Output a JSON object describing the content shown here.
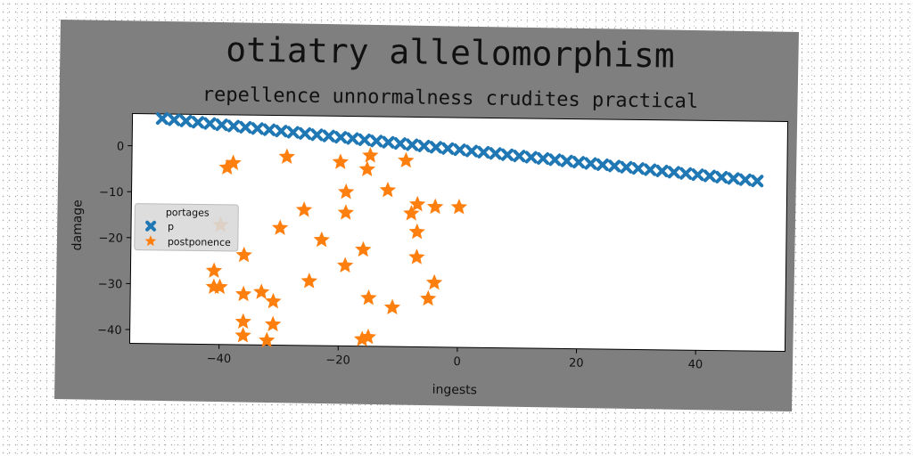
{
  "chart_data": {
    "type": "scatter",
    "title": "otiatry allelomorphism",
    "subtitle": "repellence unnormalness crudites practical",
    "xlabel": "ingests",
    "ylabel": "damage",
    "xlim": [
      -55,
      55
    ],
    "ylim": [
      -43,
      7
    ],
    "xticks": [
      -40,
      -20,
      0,
      20,
      40
    ],
    "yticks": [
      0,
      -10,
      -20,
      -30,
      -40
    ],
    "grid": false,
    "legend": {
      "title": "portages",
      "position": "center-left"
    },
    "series": [
      {
        "name": "p",
        "marker": "x",
        "color": "#1f77b4",
        "x": [
          -50,
          -48,
          -46,
          -44,
          -42,
          -40,
          -38,
          -36,
          -34,
          -32,
          -30,
          -28,
          -26,
          -24,
          -22,
          -20,
          -18,
          -16,
          -14,
          -12,
          -10,
          -8,
          -6,
          -4,
          -2,
          0,
          2,
          4,
          6,
          8,
          10,
          12,
          14,
          16,
          18,
          20,
          22,
          24,
          26,
          28,
          30,
          32,
          34,
          36,
          38,
          40,
          42,
          44,
          46,
          48,
          50
        ],
        "y": [
          6.0,
          5.76,
          5.52,
          5.28,
          5.04,
          4.8,
          4.56,
          4.32,
          4.08,
          3.84,
          3.6,
          3.36,
          3.12,
          2.88,
          2.64,
          2.4,
          2.16,
          1.92,
          1.68,
          1.44,
          1.2,
          0.96,
          0.72,
          0.48,
          0.24,
          0.0,
          -0.24,
          -0.48,
          -0.72,
          -0.96,
          -1.2,
          -1.44,
          -1.68,
          -1.92,
          -2.16,
          -2.4,
          -2.64,
          -2.88,
          -3.12,
          -3.36,
          -3.6,
          -3.84,
          -4.08,
          -4.32,
          -4.56,
          -4.8,
          -5.04,
          -5.28,
          -5.52,
          -5.76,
          -6.0
        ]
      },
      {
        "name": "postponence",
        "marker": "star",
        "color": "#ff7f0e",
        "x": [
          -39,
          -38,
          -29,
          -20,
          -15,
          -15.5,
          -9,
          -40,
          -19,
          -12,
          -7,
          -26,
          -19,
          -8,
          -4,
          0,
          -30,
          -23,
          -7,
          -41,
          -16,
          -19,
          -36,
          -40,
          -25,
          -7,
          -4,
          -41,
          -36,
          -33,
          -31,
          -15,
          -5,
          -11,
          -36,
          -31,
          -16,
          -15,
          -36,
          -32
        ],
        "y": [
          -4.5,
          -3.5,
          -2,
          -3,
          -1.5,
          -4.5,
          -2.5,
          -17,
          -9.5,
          -9,
          -12,
          -13.5,
          -14,
          -14,
          -12.5,
          -12.5,
          -17.5,
          -20,
          -18,
          -27,
          -22,
          -25.5,
          -23.5,
          -30.5,
          -29,
          -23.5,
          -29,
          -30.5,
          -32,
          -31.5,
          -33.5,
          -32.5,
          -32.5,
          -34.5,
          -38,
          -38.5,
          -41.5,
          -41,
          -41,
          -42
        ]
      }
    ]
  }
}
